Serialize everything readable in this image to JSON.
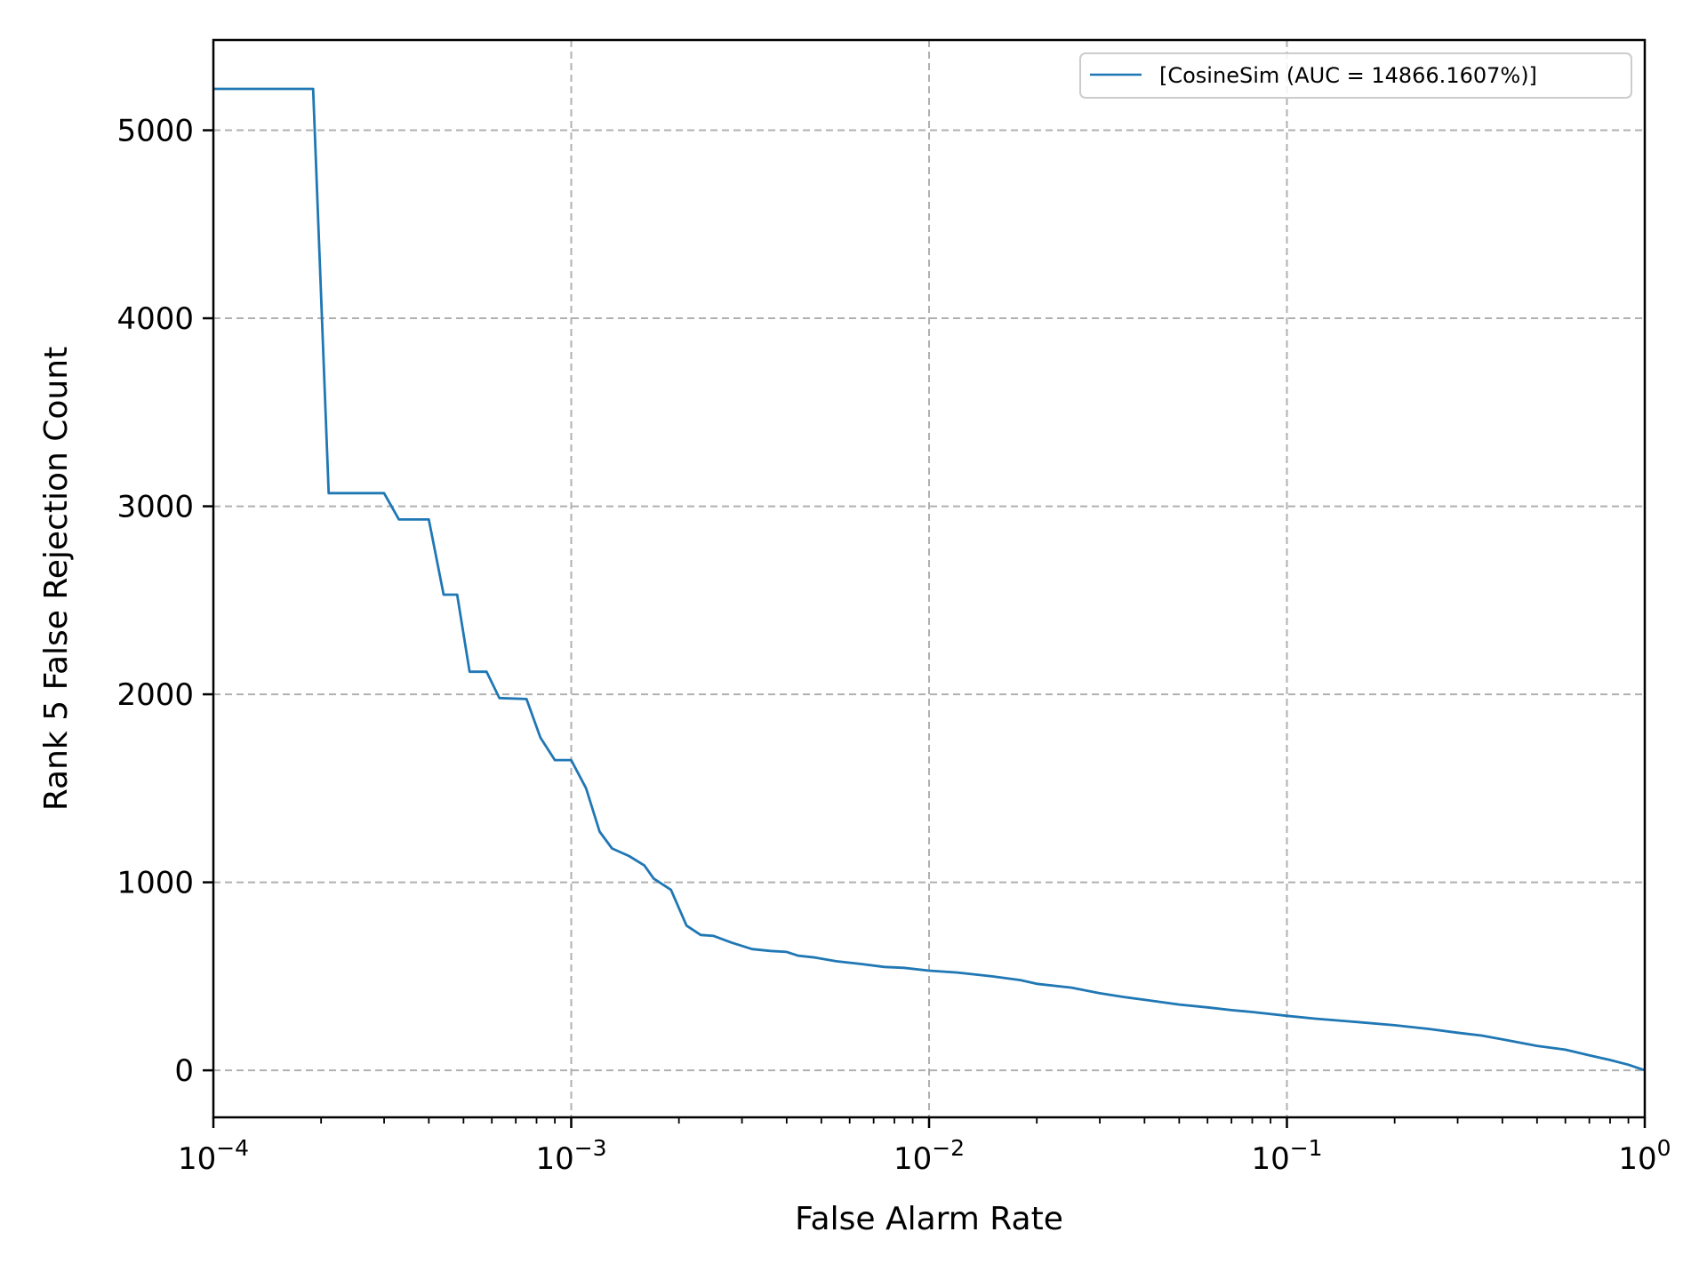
{
  "chart_data": {
    "type": "line",
    "title": "",
    "xlabel": "False Alarm Rate",
    "ylabel": "Rank 5 False Rejection Count",
    "xscale": "log",
    "xlim": [
      0.0001,
      1
    ],
    "ylim": [
      -250,
      5480
    ],
    "x_ticks": [
      {
        "value": 0.0001,
        "base": "10",
        "exp": "−4"
      },
      {
        "value": 0.001,
        "base": "10",
        "exp": "−3"
      },
      {
        "value": 0.01,
        "base": "10",
        "exp": "−2"
      },
      {
        "value": 0.1,
        "base": "10",
        "exp": "−1"
      },
      {
        "value": 1,
        "base": "10",
        "exp": "0"
      }
    ],
    "y_ticks": [
      0,
      1000,
      2000,
      3000,
      4000,
      5000
    ],
    "grid": true,
    "legend_position": "upper right",
    "series": [
      {
        "name": "[CosineSim (AUC = 14866.1607%)]",
        "color": "#1f77b4",
        "points": [
          [
            0.0001,
            5220
          ],
          [
            0.00019,
            5220
          ],
          [
            0.00021,
            3070
          ],
          [
            0.0003,
            3070
          ],
          [
            0.00033,
            2930
          ],
          [
            0.0004,
            2930
          ],
          [
            0.00044,
            2530
          ],
          [
            0.00048,
            2530
          ],
          [
            0.00052,
            2120
          ],
          [
            0.00058,
            2120
          ],
          [
            0.00063,
            1980
          ],
          [
            0.00075,
            1975
          ],
          [
            0.00082,
            1770
          ],
          [
            0.0009,
            1650
          ],
          [
            0.001,
            1650
          ],
          [
            0.0011,
            1500
          ],
          [
            0.0012,
            1270
          ],
          [
            0.0013,
            1180
          ],
          [
            0.00145,
            1140
          ],
          [
            0.0016,
            1090
          ],
          [
            0.0017,
            1020
          ],
          [
            0.0019,
            960
          ],
          [
            0.0021,
            770
          ],
          [
            0.0023,
            720
          ],
          [
            0.0025,
            715
          ],
          [
            0.0028,
            680
          ],
          [
            0.0032,
            645
          ],
          [
            0.0036,
            635
          ],
          [
            0.004,
            630
          ],
          [
            0.0043,
            610
          ],
          [
            0.0048,
            600
          ],
          [
            0.0055,
            580
          ],
          [
            0.0065,
            565
          ],
          [
            0.0075,
            550
          ],
          [
            0.0085,
            545
          ],
          [
            0.01,
            530
          ],
          [
            0.012,
            520
          ],
          [
            0.015,
            500
          ],
          [
            0.018,
            480
          ],
          [
            0.02,
            460
          ],
          [
            0.025,
            440
          ],
          [
            0.03,
            410
          ],
          [
            0.035,
            390
          ],
          [
            0.04,
            375
          ],
          [
            0.05,
            350
          ],
          [
            0.06,
            335
          ],
          [
            0.07,
            320
          ],
          [
            0.08,
            310
          ],
          [
            0.1,
            290
          ],
          [
            0.12,
            275
          ],
          [
            0.15,
            260
          ],
          [
            0.2,
            240
          ],
          [
            0.25,
            220
          ],
          [
            0.3,
            200
          ],
          [
            0.35,
            185
          ],
          [
            0.4,
            165
          ],
          [
            0.5,
            130
          ],
          [
            0.6,
            110
          ],
          [
            0.7,
            80
          ],
          [
            0.8,
            55
          ],
          [
            0.9,
            30
          ],
          [
            1.0,
            0
          ]
        ]
      }
    ]
  }
}
